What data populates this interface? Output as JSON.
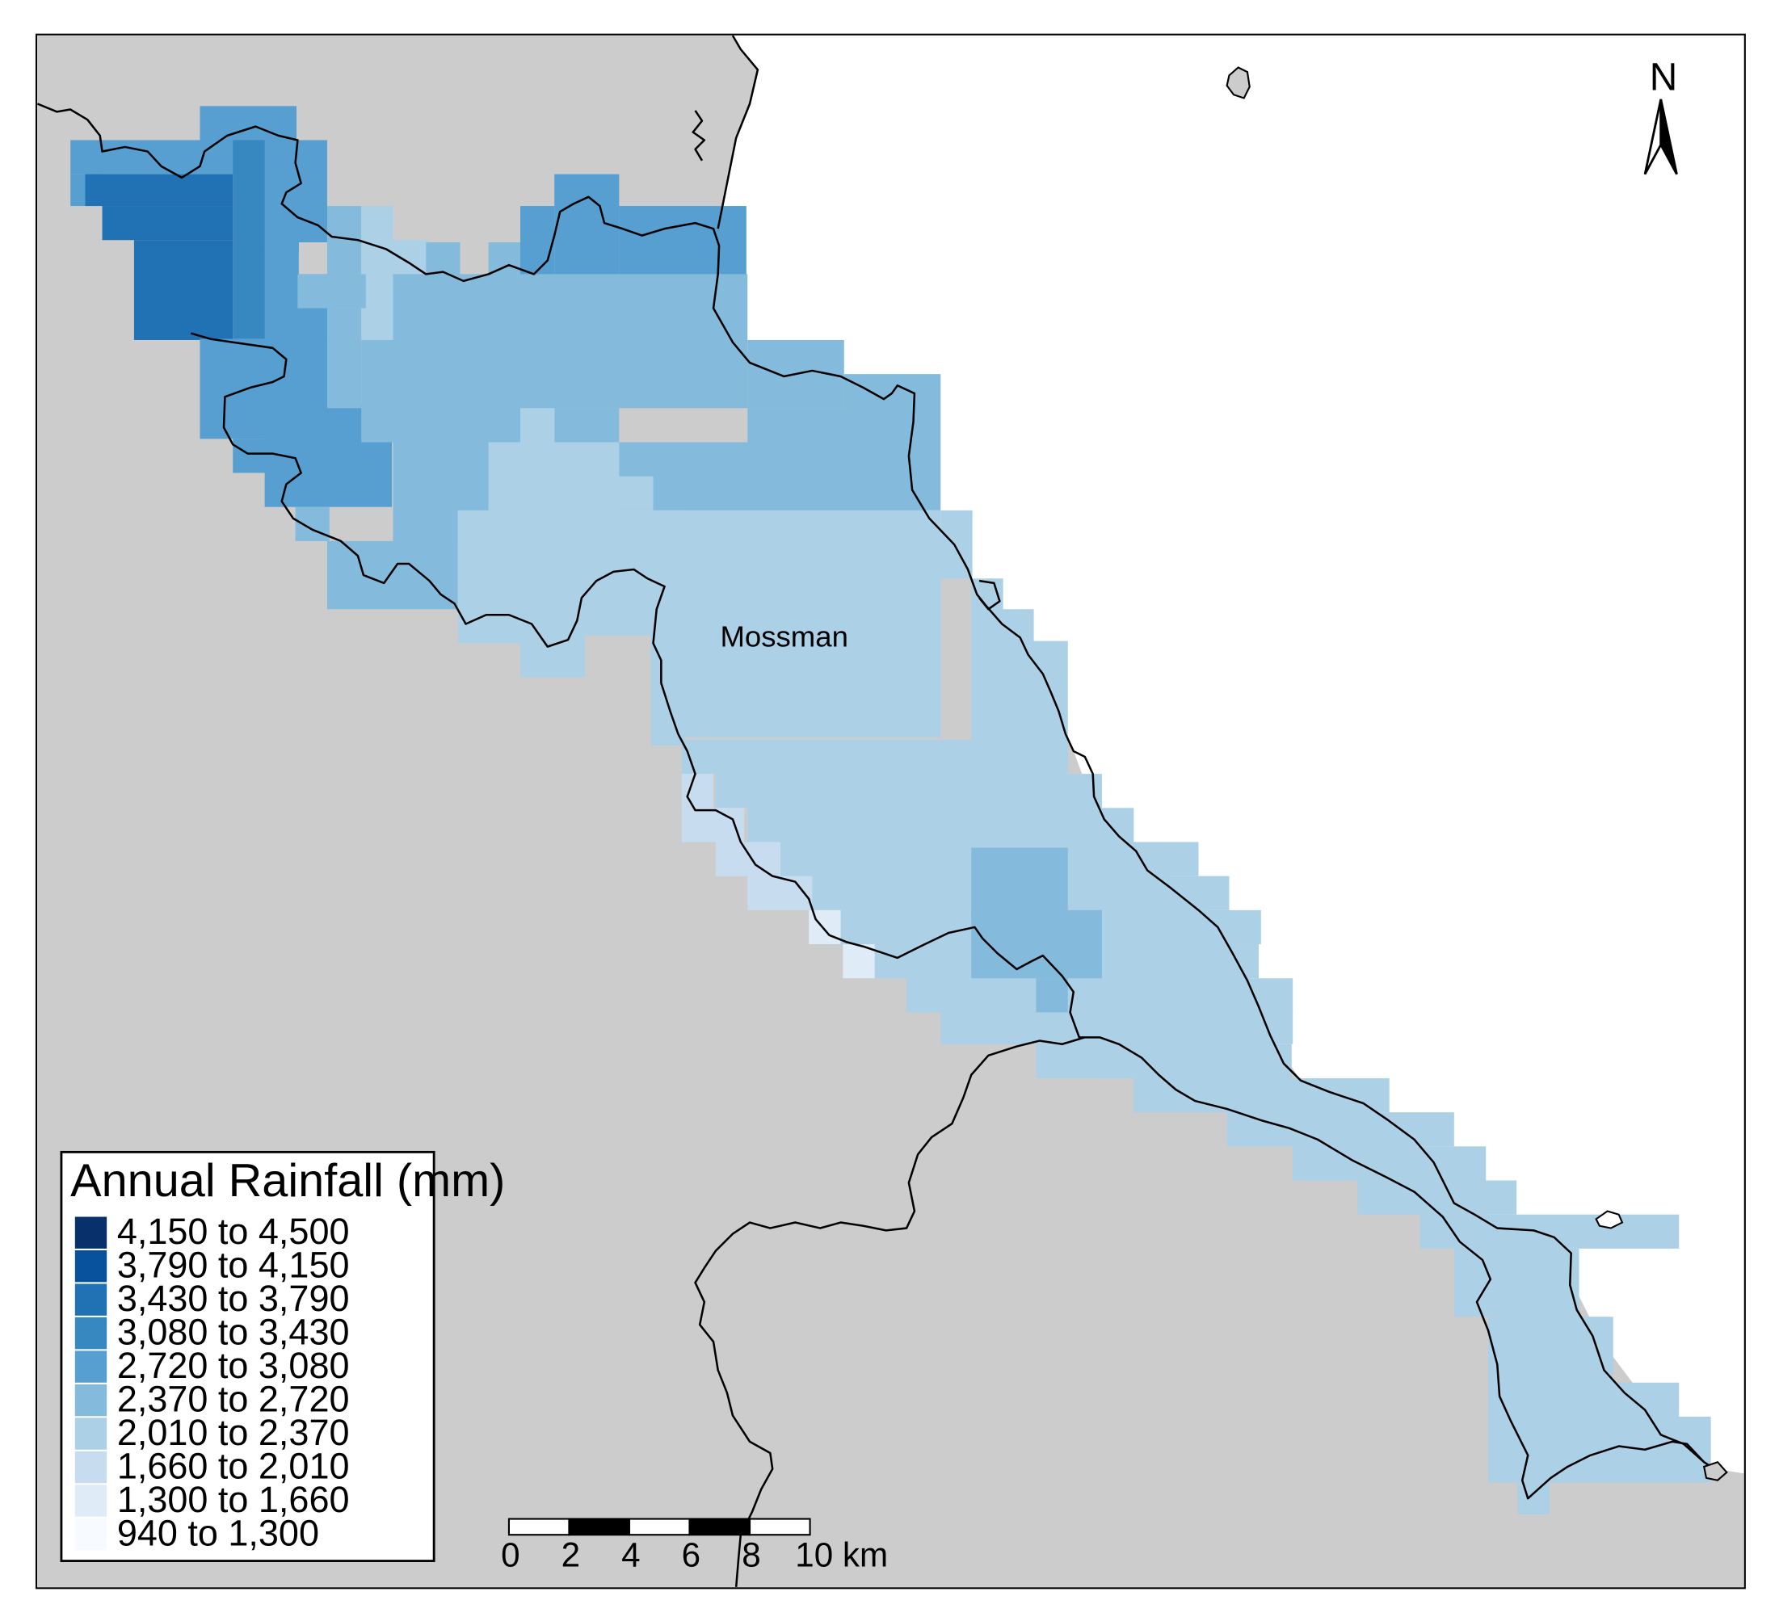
{
  "map": {
    "land_color": "#cccccc",
    "sea_color": "#ffffff",
    "border_color": "#000000",
    "place_label": "Mossman",
    "north_label": "N"
  },
  "legend": {
    "title": "Annual Rainfall (mm)",
    "classes": [
      {
        "label": "4,150 to 4,500",
        "color": "#08306b"
      },
      {
        "label": "3,790 to 4,150",
        "color": "#08519c"
      },
      {
        "label": "3,430 to 3,790",
        "color": "#2171b5"
      },
      {
        "label": "3,080 to 3,430",
        "color": "#3787c0"
      },
      {
        "label": "2,720 to 3,080",
        "color": "#569fd0"
      },
      {
        "label": "2,370 to 2,720",
        "color": "#84bbdc"
      },
      {
        "label": "2,010 to 2,370",
        "color": "#acd0e6"
      },
      {
        "label": "1,660 to 2,010",
        "color": "#c8dcf0"
      },
      {
        "label": "1,300 to 1,660",
        "color": "#dfebf7"
      },
      {
        "label": "940 to 1,300",
        "color": "#f7fbff"
      }
    ]
  },
  "scale_bar": {
    "ticks": [
      "0",
      "2",
      "4",
      "6",
      "8",
      "10 km"
    ]
  }
}
